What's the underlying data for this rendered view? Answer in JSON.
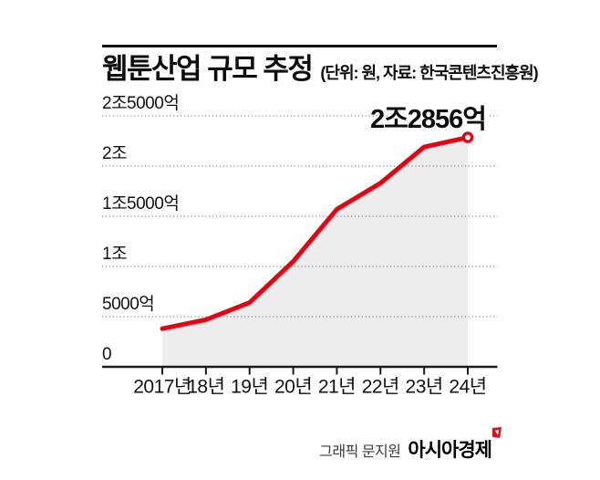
{
  "header": {
    "title": "웹툰산업 규모 추정",
    "subtitle": "(단위: 원, 자료: 한국콘텐츠진흥원)"
  },
  "footer": {
    "credit": "그래픽 문지원",
    "brand": "아시아경제"
  },
  "colors": {
    "line": "#e60012",
    "area": "#ededed",
    "grid": "#8f8f8f",
    "axis": "#1a1a1a",
    "text": "#111111",
    "annotation_text": "#0d0d0d",
    "brand_mark": "#d6131c"
  },
  "chart_data": {
    "type": "area",
    "title": "웹툰산업 규모 추정",
    "unit_note": "단위: 원, 자료: 한국콘텐츠진흥원",
    "categories": [
      "2017년",
      "18년",
      "19년",
      "20년",
      "21년",
      "22년",
      "23년",
      "24년"
    ],
    "values_eok_won": [
      3800,
      4700,
      6400,
      10500,
      15700,
      18300,
      21900,
      22856
    ],
    "values_note": "values in 억 원; only final value labeled on chart, others estimated from gridlines",
    "annotation": {
      "label": "2조2856억",
      "index": 7,
      "value_eok_won": 22856
    },
    "y_ticks": [
      {
        "value_eok_won": 25000,
        "label": "2조5000억"
      },
      {
        "value_eok_won": 20000,
        "label": "2조"
      },
      {
        "value_eok_won": 15000,
        "label": "1조5000억"
      },
      {
        "value_eok_won": 10000,
        "label": "1조"
      },
      {
        "value_eok_won": 5000,
        "label": "5000억"
      },
      {
        "value_eok_won": 0,
        "label": "0"
      }
    ],
    "ylim_eok_won": [
      0,
      27500
    ],
    "grid": "horizontal dotted lines at labeled y ticks",
    "legend": "none",
    "marker": "open red circle on last data point only"
  }
}
